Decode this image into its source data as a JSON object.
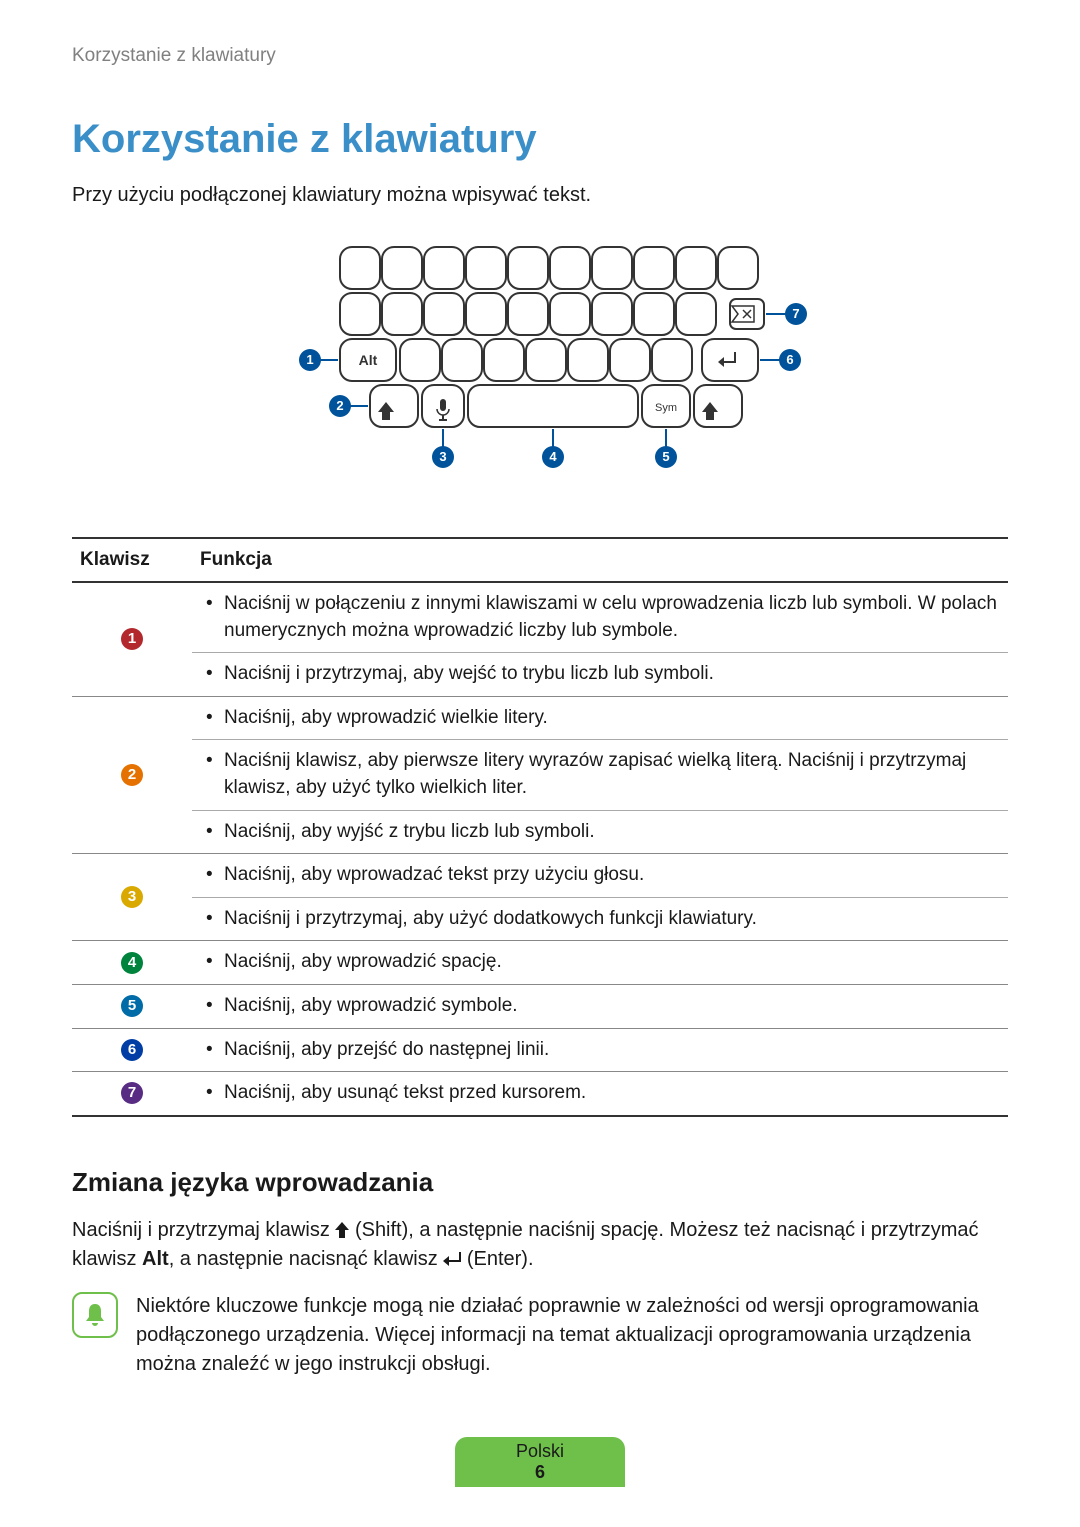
{
  "header": {
    "running_title": "Korzystanie z klawiatury"
  },
  "title": "Korzystanie z klawiatury",
  "intro": "Przy użyciu podłączonej klawiatury można wpisywać tekst.",
  "diagram": {
    "alt_label": "Alt",
    "sym_label": "Sym",
    "callout_color": "#00539b",
    "callouts": [
      "1",
      "2",
      "3",
      "4",
      "5",
      "6",
      "7"
    ]
  },
  "table": {
    "header_key": "Klawisz",
    "header_fn": "Funkcja",
    "rows": [
      {
        "num": "1",
        "color": "#b3282d",
        "items": [
          "Naciśnij w połączeniu z innymi klawiszami w celu wprowadzenia liczb lub symboli. W polach numerycznych można wprowadzić liczby lub symbole.",
          "Naciśnij i przytrzymaj, aby wejść to trybu liczb lub symboli."
        ]
      },
      {
        "num": "2",
        "color": "#e57200",
        "items": [
          "Naciśnij, aby wprowadzić wielkie litery.",
          "Naciśnij klawisz, aby pierwsze litery wyrazów zapisać wielką literą. Naciśnij i przytrzymaj klawisz, aby użyć tylko wielkich liter.",
          "Naciśnij, aby wyjść z trybu liczb lub symboli."
        ]
      },
      {
        "num": "3",
        "color": "#d9a900",
        "items": [
          "Naciśnij, aby wprowadzać tekst przy użyciu głosu.",
          "Naciśnij i przytrzymaj, aby użyć dodatkowych funkcji klawiatury."
        ]
      },
      {
        "num": "4",
        "color": "#00843d",
        "items": [
          "Naciśnij, aby wprowadzić spację."
        ]
      },
      {
        "num": "5",
        "color": "#006ba6",
        "items": [
          "Naciśnij, aby wprowadzić symbole."
        ]
      },
      {
        "num": "6",
        "color": "#003da5",
        "items": [
          "Naciśnij, aby przejść do następnej linii."
        ]
      },
      {
        "num": "7",
        "color": "#582c83",
        "items": [
          "Naciśnij, aby usunąć tekst przed kursorem."
        ]
      }
    ]
  },
  "subsection": {
    "title": "Zmiana języka wprowadzania",
    "body_pre": "Naciśnij i przytrzymaj klawisz ",
    "body_shift": " (Shift), a następnie naciśnij spację. Możesz też nacisnąć i przytrzymać klawisz ",
    "alt_bold": "Alt",
    "body_mid": ", a następnie nacisnąć klawisz ",
    "body_enter": " (Enter)."
  },
  "note": {
    "text": "Niektóre kluczowe funkcje mogą nie działać poprawnie w zależności od wersji oprogramowania podłączonego urządzenia. Więcej informacji na temat aktualizacji oprogramowania urządzenia można znaleźć w jego instrukcji obsługi."
  },
  "footer": {
    "language": "Polski",
    "page": "6"
  }
}
